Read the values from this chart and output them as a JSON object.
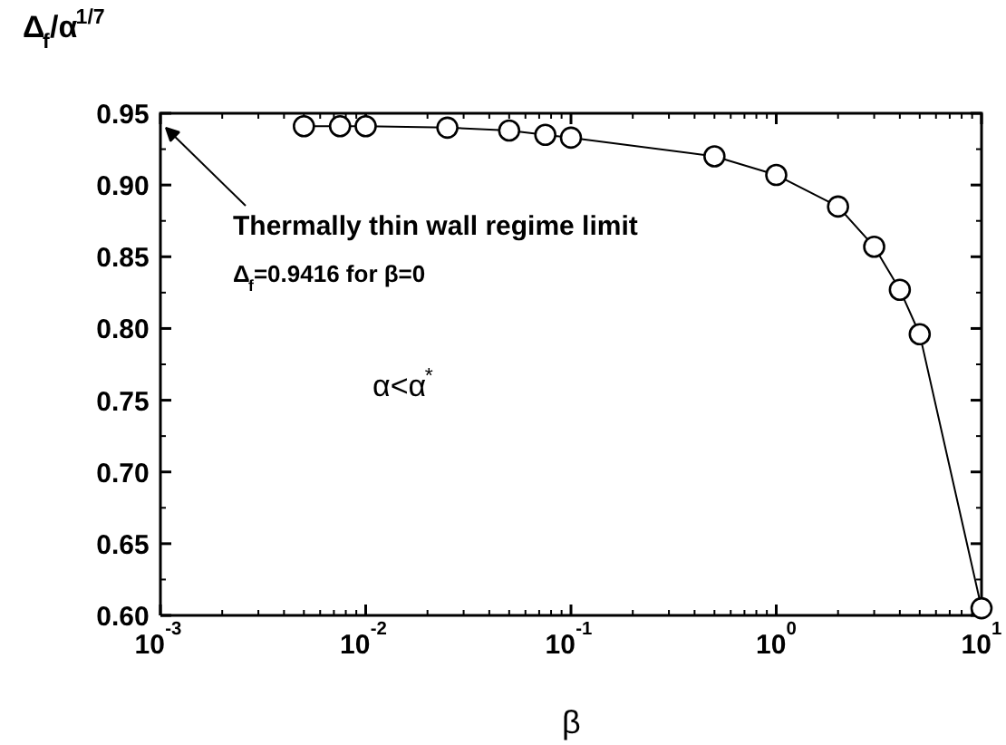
{
  "chart_data": {
    "type": "line",
    "xlabel": "β",
    "ylabel": "Δ$_{f}$/α$^{1/7}$",
    "x": [
      0.005,
      0.0075,
      0.01,
      0.025,
      0.05,
      0.075,
      0.1,
      0.5,
      1,
      2,
      3,
      4,
      5,
      10
    ],
    "series": [
      {
        "color": "#000000",
        "values": [
          0.941,
          0.941,
          0.941,
          0.94,
          0.938,
          0.935,
          0.933,
          0.92,
          0.907,
          0.885,
          0.857,
          0.827,
          0.796,
          0.605
        ]
      }
    ],
    "marker": "circle",
    "line_style": "solid",
    "log": "x",
    "grid": false,
    "xlim": [
      0.001,
      10
    ],
    "ylim": [
      0.6,
      0.95
    ],
    "xticks": [
      {
        "value": 0.001,
        "label": "10$^{-3}$"
      },
      {
        "value": 0.01,
        "label": "10$^{-2}$"
      },
      {
        "value": 0.1,
        "label": "10$^{-1}$"
      },
      {
        "value": 1,
        "label": "10$^{0}$"
      },
      {
        "value": 10,
        "label": "10$^{1}$"
      }
    ],
    "yticks": [
      {
        "value": 0.6,
        "label": "0.60"
      },
      {
        "value": 0.65,
        "label": "0.65"
      },
      {
        "value": 0.7,
        "label": "0.70"
      },
      {
        "value": 0.75,
        "label": "0.75"
      },
      {
        "value": 0.8,
        "label": "0.80"
      },
      {
        "value": 0.85,
        "label": "0.85"
      },
      {
        "value": 0.9,
        "label": "0.90"
      },
      {
        "value": 0.95,
        "label": "0.95"
      }
    ],
    "annotations": [
      "Thermally thin wall regime limit",
      "Δ$_{f}$=0.9416 for β=0",
      "α<α$^{*}$"
    ]
  }
}
